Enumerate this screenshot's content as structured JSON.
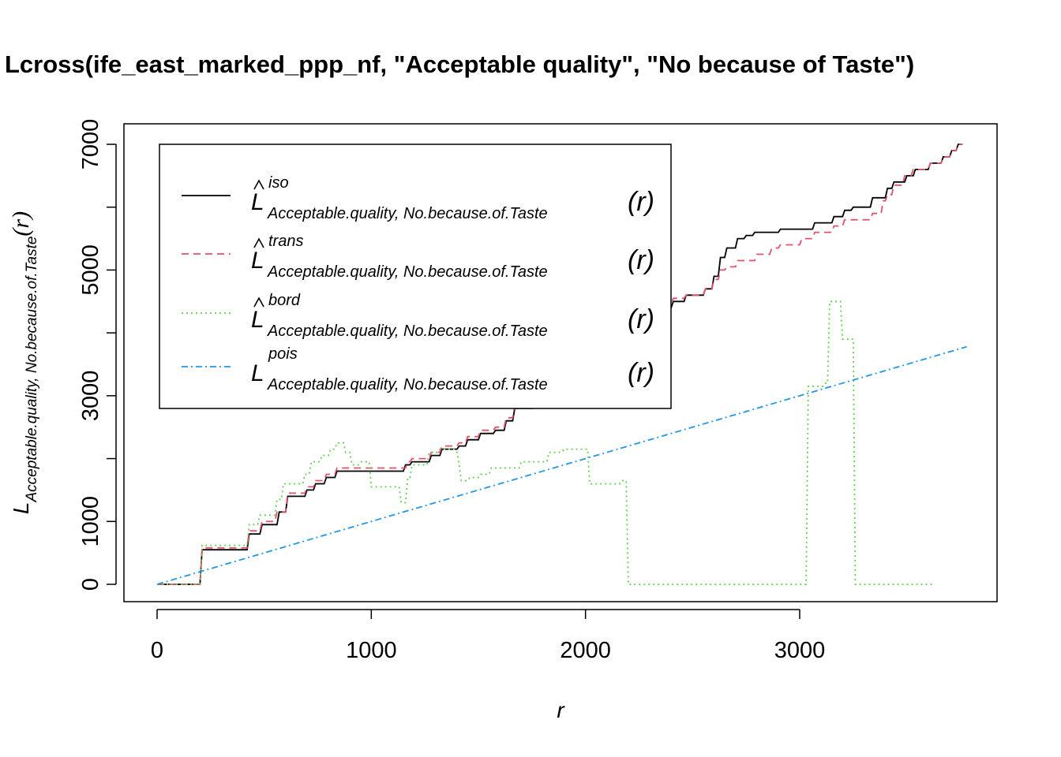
{
  "chart_data": {
    "type": "line",
    "title": "Lcross(ife_east_marked_ppp_nf, \"Acceptable quality\", \"No because of Taste\")",
    "xlabel": "r",
    "ylabel_main": "L",
    "ylabel_sub": "Acceptable.quality, No.because.of.Taste",
    "ylabel_paren": "(r)",
    "xlim": [
      0,
      3750
    ],
    "ylim": [
      0,
      7000
    ],
    "xticks": [
      0,
      1000,
      2000,
      3000
    ],
    "yticks": [
      0,
      1000,
      3000,
      5000,
      7000
    ],
    "y_minor_ticks": [
      2000,
      4000,
      6000
    ],
    "legend_position": "top-left",
    "series": [
      {
        "name": "iso",
        "legend_main": "L",
        "legend_sup": "iso",
        "legend_sub": "Acceptable.quality, No.because.of.Taste",
        "legend_paren": "(r)",
        "hat": true,
        "color": "#000000",
        "dash": "",
        "step": true,
        "points": [
          [
            0,
            0
          ],
          [
            200,
            0
          ],
          [
            210,
            550
          ],
          [
            420,
            550
          ],
          [
            430,
            800
          ],
          [
            480,
            800
          ],
          [
            490,
            950
          ],
          [
            560,
            950
          ],
          [
            570,
            1150
          ],
          [
            600,
            1150
          ],
          [
            610,
            1400
          ],
          [
            690,
            1400
          ],
          [
            700,
            1500
          ],
          [
            730,
            1500
          ],
          [
            740,
            1600
          ],
          [
            780,
            1600
          ],
          [
            790,
            1700
          ],
          [
            830,
            1700
          ],
          [
            840,
            1800
          ],
          [
            1150,
            1800
          ],
          [
            1160,
            1900
          ],
          [
            1180,
            1900
          ],
          [
            1190,
            1950
          ],
          [
            1270,
            1950
          ],
          [
            1280,
            2050
          ],
          [
            1320,
            2050
          ],
          [
            1330,
            2150
          ],
          [
            1400,
            2150
          ],
          [
            1410,
            2200
          ],
          [
            1440,
            2200
          ],
          [
            1450,
            2300
          ],
          [
            1500,
            2300
          ],
          [
            1510,
            2400
          ],
          [
            1570,
            2400
          ],
          [
            1580,
            2450
          ],
          [
            1620,
            2450
          ],
          [
            1630,
            2600
          ],
          [
            1660,
            2600
          ],
          [
            1670,
            2800
          ],
          [
            1750,
            2800
          ],
          [
            1760,
            3000
          ],
          [
            1900,
            3000
          ],
          [
            1910,
            3100
          ],
          [
            2000,
            3100
          ],
          [
            2010,
            3300
          ],
          [
            2090,
            3300
          ],
          [
            2100,
            3500
          ],
          [
            2170,
            3500
          ],
          [
            2180,
            3700
          ],
          [
            2200,
            3700
          ],
          [
            2210,
            4000
          ],
          [
            2230,
            4000
          ],
          [
            2240,
            4200
          ],
          [
            2250,
            4200
          ],
          [
            2260,
            4300
          ],
          [
            2320,
            4300
          ],
          [
            2330,
            4400
          ],
          [
            2400,
            4400
          ],
          [
            2410,
            4500
          ],
          [
            2460,
            4500
          ],
          [
            2470,
            4600
          ],
          [
            2550,
            4600
          ],
          [
            2560,
            4700
          ],
          [
            2590,
            4700
          ],
          [
            2600,
            4900
          ],
          [
            2620,
            4900
          ],
          [
            2630,
            5200
          ],
          [
            2650,
            5200
          ],
          [
            2660,
            5350
          ],
          [
            2700,
            5350
          ],
          [
            2710,
            5500
          ],
          [
            2740,
            5500
          ],
          [
            2750,
            5550
          ],
          [
            2780,
            5550
          ],
          [
            2790,
            5600
          ],
          [
            2900,
            5600
          ],
          [
            2910,
            5650
          ],
          [
            3060,
            5650
          ],
          [
            3070,
            5750
          ],
          [
            3150,
            5750
          ],
          [
            3160,
            5850
          ],
          [
            3200,
            5850
          ],
          [
            3210,
            5950
          ],
          [
            3240,
            5950
          ],
          [
            3250,
            6000
          ],
          [
            3330,
            6000
          ],
          [
            3340,
            6150
          ],
          [
            3400,
            6150
          ],
          [
            3410,
            6300
          ],
          [
            3430,
            6300
          ],
          [
            3440,
            6400
          ],
          [
            3490,
            6400
          ],
          [
            3500,
            6500
          ],
          [
            3530,
            6500
          ],
          [
            3540,
            6600
          ],
          [
            3600,
            6600
          ],
          [
            3610,
            6700
          ],
          [
            3660,
            6700
          ],
          [
            3670,
            6800
          ],
          [
            3700,
            6800
          ],
          [
            3710,
            6900
          ],
          [
            3730,
            6900
          ],
          [
            3740,
            7000
          ],
          [
            3760,
            7000
          ]
        ]
      },
      {
        "name": "trans",
        "legend_main": "L",
        "legend_sup": "trans",
        "legend_sub": "Acceptable.quality, No.because.of.Taste",
        "legend_paren": "(r)",
        "hat": true,
        "color": "#DF536B",
        "dash": "9,6",
        "step": true,
        "points": [
          [
            0,
            0
          ],
          [
            200,
            0
          ],
          [
            210,
            580
          ],
          [
            420,
            580
          ],
          [
            430,
            850
          ],
          [
            480,
            850
          ],
          [
            490,
            1000
          ],
          [
            550,
            1000
          ],
          [
            560,
            1150
          ],
          [
            600,
            1150
          ],
          [
            610,
            1450
          ],
          [
            690,
            1450
          ],
          [
            700,
            1550
          ],
          [
            730,
            1550
          ],
          [
            740,
            1650
          ],
          [
            780,
            1650
          ],
          [
            790,
            1750
          ],
          [
            830,
            1750
          ],
          [
            840,
            1850
          ],
          [
            1160,
            1850
          ],
          [
            1170,
            1950
          ],
          [
            1180,
            1950
          ],
          [
            1190,
            2000
          ],
          [
            1270,
            2000
          ],
          [
            1280,
            2100
          ],
          [
            1320,
            2100
          ],
          [
            1330,
            2200
          ],
          [
            1400,
            2200
          ],
          [
            1410,
            2250
          ],
          [
            1440,
            2250
          ],
          [
            1450,
            2350
          ],
          [
            1500,
            2350
          ],
          [
            1510,
            2450
          ],
          [
            1570,
            2450
          ],
          [
            1580,
            2500
          ],
          [
            1620,
            2500
          ],
          [
            1630,
            2650
          ],
          [
            1660,
            2650
          ],
          [
            1670,
            2850
          ],
          [
            1750,
            2850
          ],
          [
            1760,
            3050
          ],
          [
            1900,
            3050
          ],
          [
            1910,
            3150
          ],
          [
            2000,
            3150
          ],
          [
            2010,
            3350
          ],
          [
            2090,
            3350
          ],
          [
            2100,
            3550
          ],
          [
            2170,
            3550
          ],
          [
            2180,
            3800
          ],
          [
            2200,
            3800
          ],
          [
            2210,
            4050
          ],
          [
            2230,
            4050
          ],
          [
            2240,
            4250
          ],
          [
            2250,
            4250
          ],
          [
            2260,
            4350
          ],
          [
            2320,
            4350
          ],
          [
            2330,
            4450
          ],
          [
            2400,
            4450
          ],
          [
            2410,
            4550
          ],
          [
            2460,
            4550
          ],
          [
            2470,
            4600
          ],
          [
            2550,
            4600
          ],
          [
            2560,
            4700
          ],
          [
            2590,
            4700
          ],
          [
            2600,
            4850
          ],
          [
            2620,
            4850
          ],
          [
            2630,
            5000
          ],
          [
            2650,
            5000
          ],
          [
            2660,
            5050
          ],
          [
            2700,
            5050
          ],
          [
            2710,
            5150
          ],
          [
            2790,
            5150
          ],
          [
            2800,
            5250
          ],
          [
            2860,
            5250
          ],
          [
            2870,
            5350
          ],
          [
            2900,
            5350
          ],
          [
            2910,
            5400
          ],
          [
            3000,
            5400
          ],
          [
            3010,
            5500
          ],
          [
            3060,
            5500
          ],
          [
            3070,
            5600
          ],
          [
            3150,
            5600
          ],
          [
            3160,
            5700
          ],
          [
            3200,
            5700
          ],
          [
            3210,
            5800
          ],
          [
            3330,
            5800
          ],
          [
            3340,
            5900
          ],
          [
            3380,
            5900
          ],
          [
            3390,
            6100
          ],
          [
            3400,
            6100
          ],
          [
            3410,
            6200
          ],
          [
            3430,
            6200
          ],
          [
            3440,
            6350
          ],
          [
            3480,
            6350
          ],
          [
            3490,
            6500
          ],
          [
            3520,
            6500
          ],
          [
            3530,
            6600
          ],
          [
            3600,
            6600
          ],
          [
            3610,
            6700
          ],
          [
            3660,
            6700
          ],
          [
            3670,
            6800
          ],
          [
            3700,
            6800
          ],
          [
            3710,
            6900
          ],
          [
            3730,
            6900
          ],
          [
            3740,
            7000
          ],
          [
            3760,
            7000
          ]
        ]
      },
      {
        "name": "bord",
        "legend_main": "L",
        "legend_sup": "bord",
        "legend_sub": "Acceptable.quality, No.because.of.Taste",
        "legend_paren": "(r)",
        "hat": true,
        "color": "#61D04F",
        "dash": "2,4",
        "step": true,
        "points": [
          [
            0,
            0
          ],
          [
            200,
            0
          ],
          [
            210,
            620
          ],
          [
            420,
            620
          ],
          [
            430,
            950
          ],
          [
            470,
            950
          ],
          [
            480,
            1100
          ],
          [
            550,
            1100
          ],
          [
            560,
            1350
          ],
          [
            580,
            1350
          ],
          [
            590,
            1600
          ],
          [
            680,
            1600
          ],
          [
            690,
            1750
          ],
          [
            710,
            1750
          ],
          [
            720,
            1950
          ],
          [
            760,
            1950
          ],
          [
            770,
            2050
          ],
          [
            800,
            2050
          ],
          [
            810,
            2150
          ],
          [
            830,
            2150
          ],
          [
            840,
            2250
          ],
          [
            870,
            2250
          ],
          [
            880,
            2100
          ],
          [
            900,
            2100
          ],
          [
            910,
            1900
          ],
          [
            940,
            1900
          ],
          [
            950,
            1950
          ],
          [
            990,
            1950
          ],
          [
            1000,
            1550
          ],
          [
            1130,
            1550
          ],
          [
            1140,
            1300
          ],
          [
            1160,
            1300
          ],
          [
            1170,
            1700
          ],
          [
            1180,
            1700
          ],
          [
            1190,
            1900
          ],
          [
            1260,
            1900
          ],
          [
            1270,
            2100
          ],
          [
            1310,
            2100
          ],
          [
            1320,
            2150
          ],
          [
            1390,
            2150
          ],
          [
            1400,
            2100
          ],
          [
            1410,
            1900
          ],
          [
            1420,
            1650
          ],
          [
            1450,
            1650
          ],
          [
            1460,
            1700
          ],
          [
            1500,
            1700
          ],
          [
            1510,
            1750
          ],
          [
            1550,
            1750
          ],
          [
            1560,
            1850
          ],
          [
            1690,
            1850
          ],
          [
            1700,
            1950
          ],
          [
            1820,
            1950
          ],
          [
            1830,
            2100
          ],
          [
            1890,
            2100
          ],
          [
            1900,
            2150
          ],
          [
            2010,
            2150
          ],
          [
            2020,
            1600
          ],
          [
            2160,
            1600
          ],
          [
            2170,
            1650
          ],
          [
            2190,
            1650
          ],
          [
            2200,
            0
          ],
          [
            3030,
            0
          ],
          [
            3040,
            3150
          ],
          [
            3110,
            3150
          ],
          [
            3120,
            3200
          ],
          [
            3130,
            3200
          ],
          [
            3140,
            4500
          ],
          [
            3190,
            4500
          ],
          [
            3200,
            3900
          ],
          [
            3250,
            3900
          ],
          [
            3260,
            0
          ],
          [
            3620,
            0
          ]
        ]
      },
      {
        "name": "pois",
        "legend_main": "L",
        "legend_sup": "pois",
        "legend_sub": "Acceptable.quality, No.because.of.Taste",
        "legend_paren": "(r)",
        "hat": false,
        "color": "#2297E6",
        "dash": "8,4,2,4",
        "step": false,
        "points": [
          [
            0,
            0
          ],
          [
            3780,
            3780
          ]
        ]
      }
    ]
  }
}
